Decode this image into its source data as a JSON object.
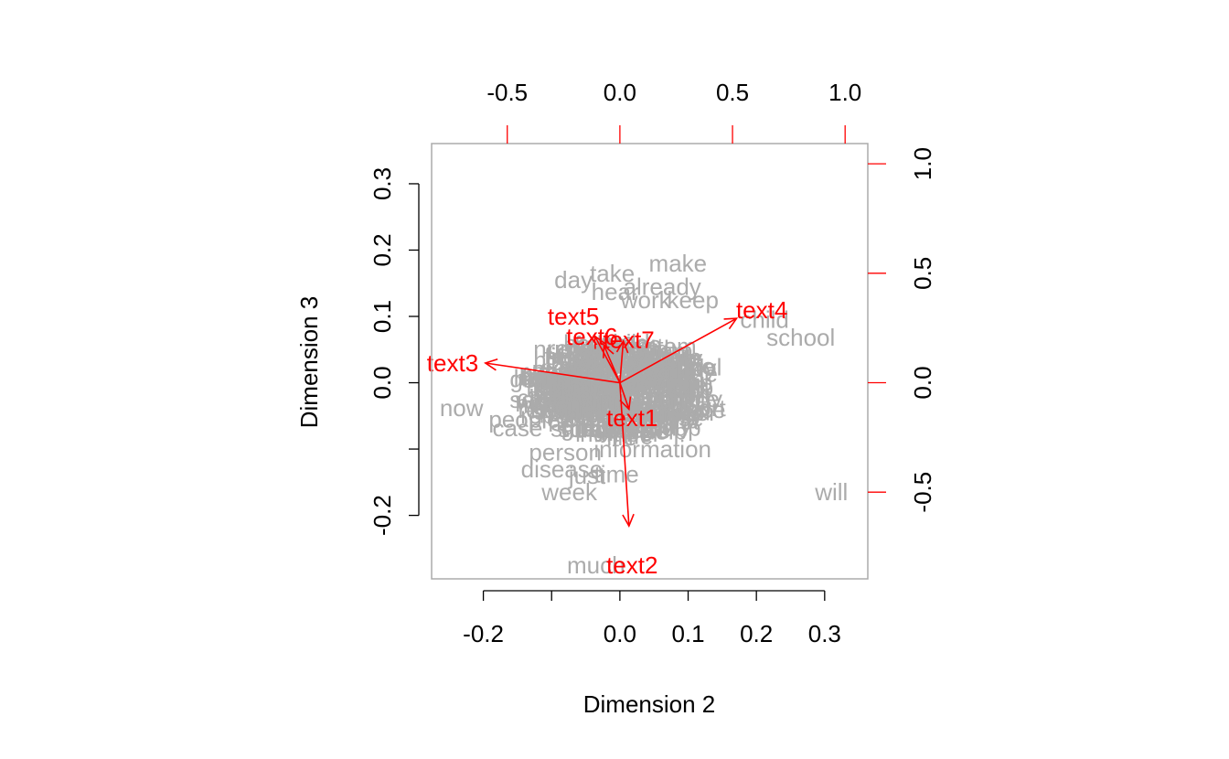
{
  "chart_data": {
    "type": "scatter",
    "subtype": "correspondence-analysis-biplot",
    "title": "",
    "xlabel": "Dimension 2",
    "ylabel": "Dimension 3",
    "xlim": [
      -0.2758,
      0.3632
    ],
    "ylim": [
      -0.2957,
      0.3606
    ],
    "xticks": [
      -0.2,
      -0.1,
      0.0,
      0.1,
      0.2,
      0.3
    ],
    "xtick_labels": [
      "-0.2",
      "",
      "0.0",
      "0.1",
      "0.2",
      "0.3"
    ],
    "yticks": [
      -0.2,
      -0.1,
      0.0,
      0.1,
      0.2,
      0.3
    ],
    "ytick_labels": [
      "-0.2",
      "",
      "0.0",
      "0.1",
      "0.2",
      "0.3"
    ],
    "secondary_xlim": [
      -0.8359,
      1.1007
    ],
    "secondary_ylim": [
      -0.8961,
      1.0925
    ],
    "secondary_xticks": [
      -0.5,
      0.0,
      0.5,
      1.0
    ],
    "secondary_xtick_labels": [
      "-0.5",
      "0.0",
      "0.5",
      "1.0"
    ],
    "secondary_yticks": [
      -0.5,
      0.0,
      0.5,
      1.0
    ],
    "secondary_ytick_labels": [
      "-0.5",
      "0.0",
      "0.5",
      "1.0"
    ],
    "colors": {
      "words": "#ababab",
      "vectors": "#ff0000",
      "axis": "#000000",
      "frame": "#ababab"
    },
    "words": [
      {
        "label": "make",
        "x": 0.085,
        "y": 0.18
      },
      {
        "label": "day",
        "x": -0.068,
        "y": 0.155
      },
      {
        "label": "take",
        "x": -0.011,
        "y": 0.165
      },
      {
        "label": "already",
        "x": 0.062,
        "y": 0.145
      },
      {
        "label": "hear",
        "x": -0.007,
        "y": 0.137
      },
      {
        "label": "keep",
        "x": 0.107,
        "y": 0.125
      },
      {
        "label": "work",
        "x": 0.038,
        "y": 0.125
      },
      {
        "label": "child",
        "x": 0.212,
        "y": 0.095
      },
      {
        "label": "school",
        "x": 0.265,
        "y": 0.068
      },
      {
        "label": "now",
        "x": -0.232,
        "y": -0.038
      },
      {
        "label": "people",
        "x": -0.14,
        "y": -0.055
      },
      {
        "label": "case",
        "x": -0.15,
        "y": -0.068
      },
      {
        "label": "person",
        "x": -0.08,
        "y": -0.105
      },
      {
        "label": "information",
        "x": 0.048,
        "y": -0.1
      },
      {
        "label": "disease",
        "x": -0.085,
        "y": -0.13
      },
      {
        "label": "just",
        "x": -0.048,
        "y": -0.14
      },
      {
        "label": "time",
        "x": -0.005,
        "y": -0.138
      },
      {
        "label": "week",
        "x": -0.074,
        "y": -0.165
      },
      {
        "label": "will",
        "x": 0.31,
        "y": -0.165
      },
      {
        "label": "much",
        "x": -0.035,
        "y": -0.275
      }
    ],
    "vectors": [
      {
        "label": "text1",
        "x": 0.0133,
        "y": -0.04,
        "label_x": 0.018,
        "label_y": -0.053
      },
      {
        "label": "text2",
        "x": 0.0133,
        "y": -0.216,
        "label_x": 0.018,
        "label_y": -0.275
      },
      {
        "label": "text3",
        "x": -0.197,
        "y": 0.0297,
        "label_x": -0.245,
        "label_y": 0.03
      },
      {
        "label": "text4",
        "x": 0.171,
        "y": 0.097,
        "label_x": 0.208,
        "label_y": 0.11
      },
      {
        "label": "text5",
        "x": -0.0368,
        "y": 0.0703,
        "label_x": -0.068,
        "label_y": 0.1
      },
      {
        "label": "text6",
        "x": -0.0233,
        "y": 0.0562,
        "label_x": -0.041,
        "label_y": 0.07
      },
      {
        "label": "text7",
        "x": 0.005,
        "y": 0.063,
        "label_x": 0.013,
        "label_y": 0.065
      }
    ]
  }
}
